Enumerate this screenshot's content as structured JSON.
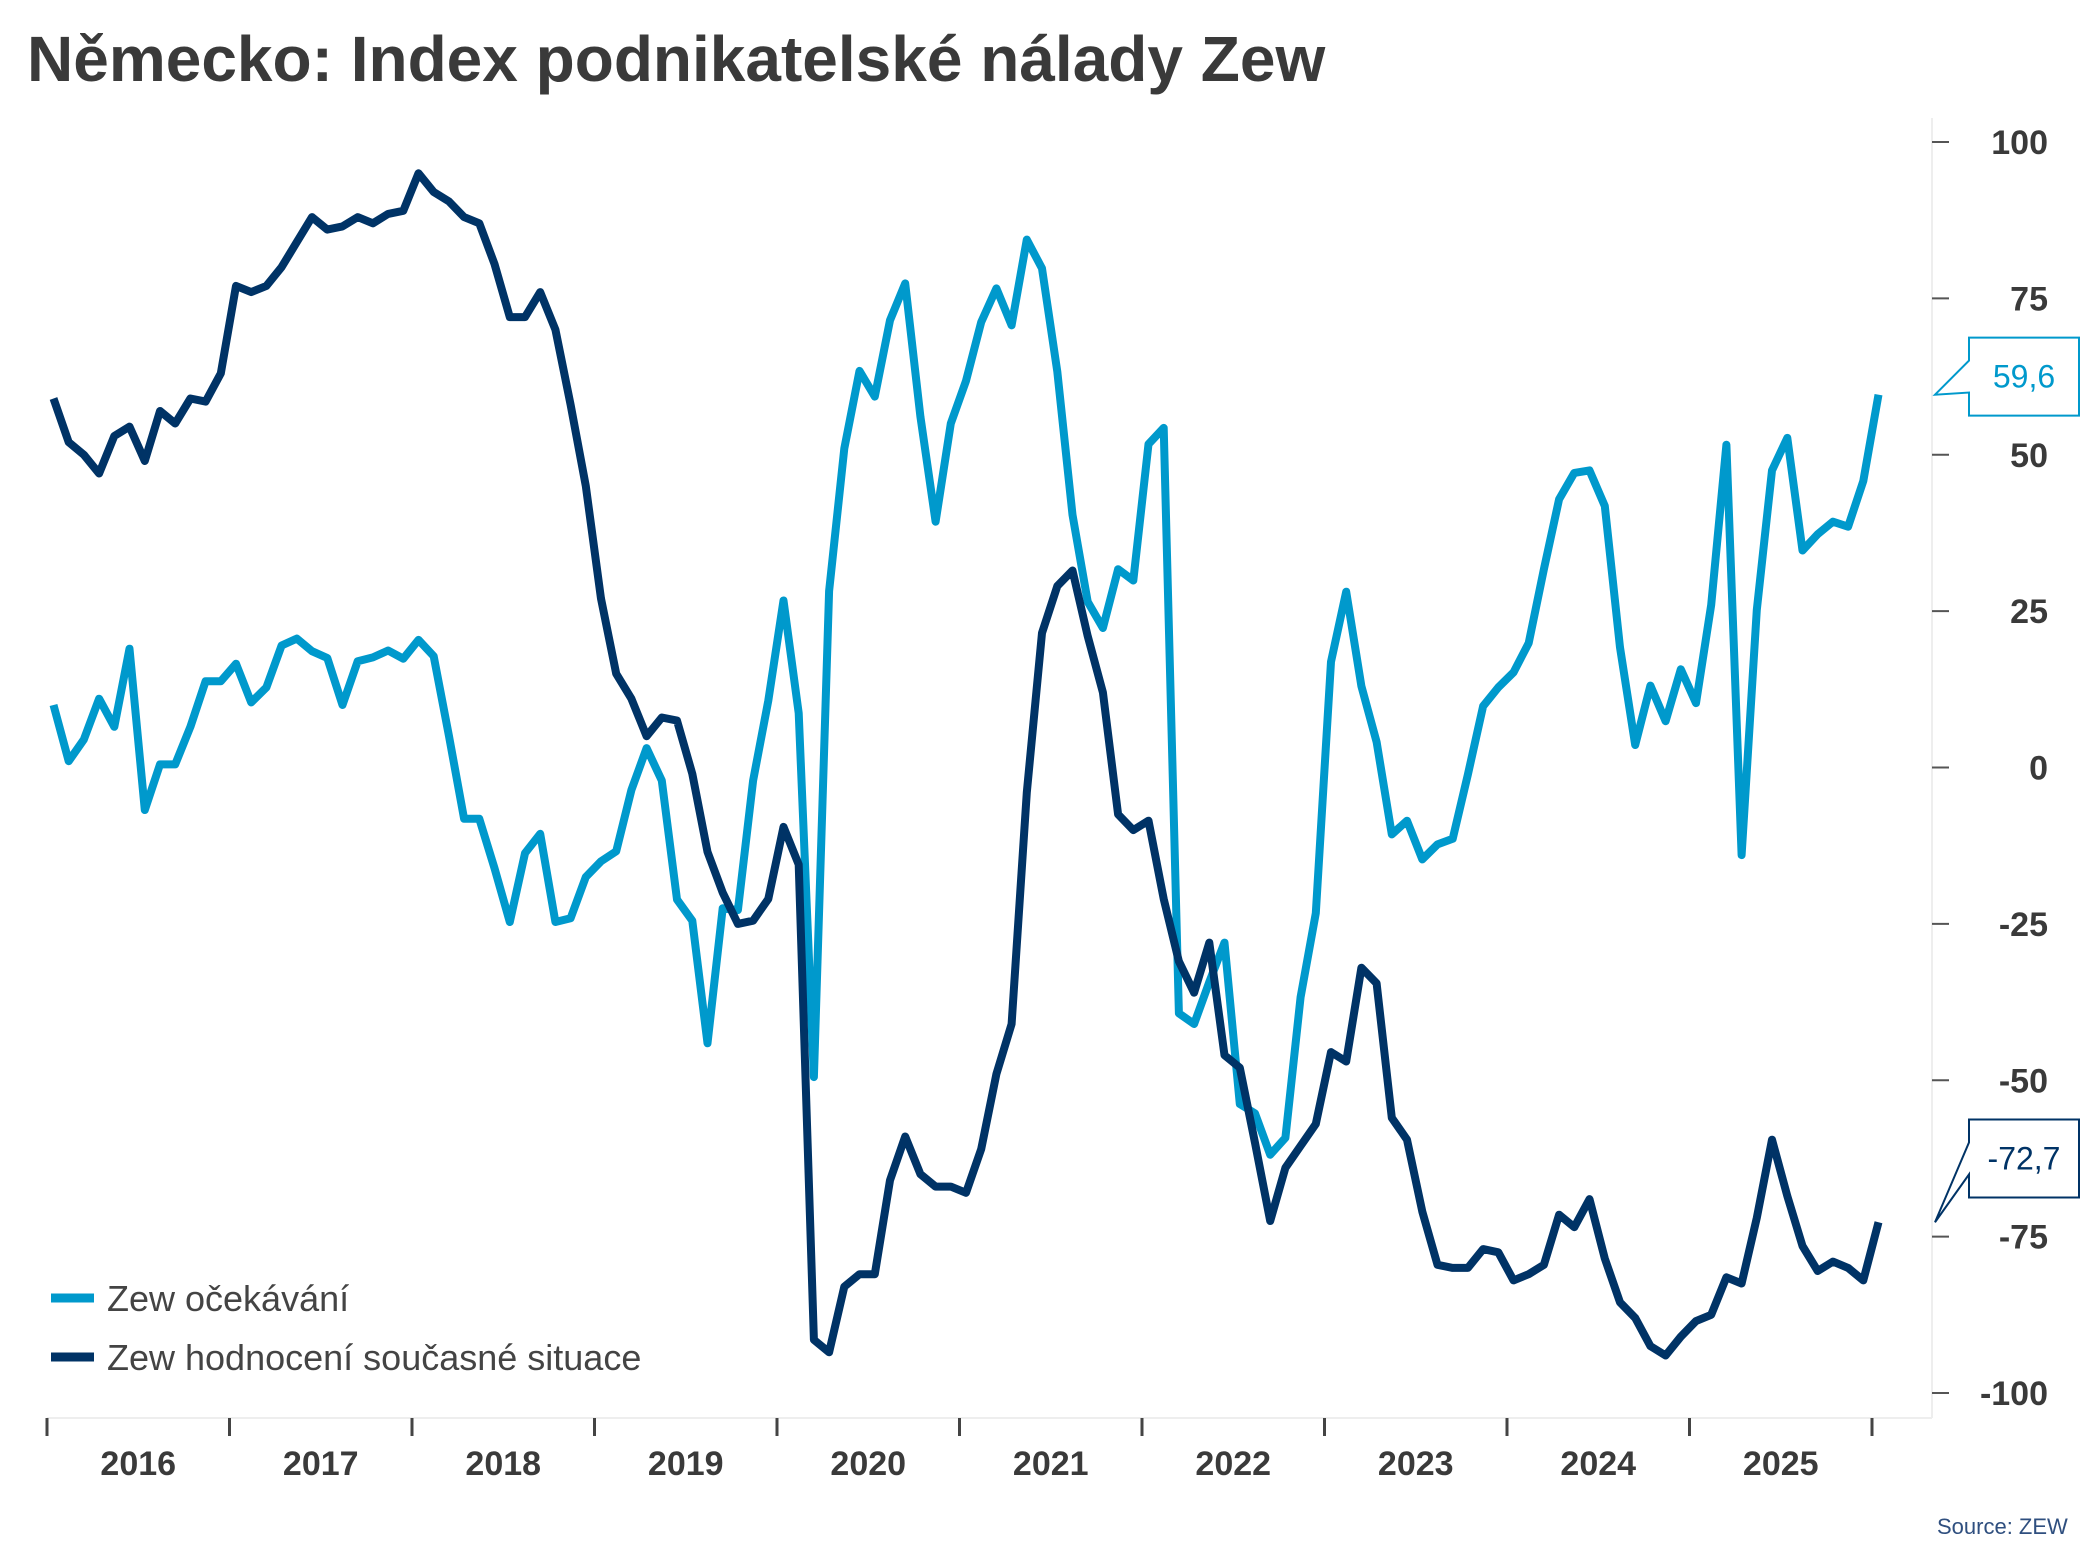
{
  "title": "Německo: Index podnikatelské nálady Zew",
  "source": "Source: ZEW",
  "colors": {
    "expectations": "#0099cc",
    "current": "#003366"
  },
  "chart_data": {
    "type": "line",
    "title": "Německo: Index podnikatelské nálady Zew",
    "x_start": "2016-01",
    "frequency": "monthly",
    "x_tick_labels": [
      "2016",
      "2017",
      "2018",
      "2019",
      "2020",
      "2021",
      "2022",
      "2023",
      "2024",
      "2025"
    ],
    "y_tick_labels": [
      "100",
      "75",
      "50",
      "25",
      "0",
      "-25",
      "-50",
      "-75",
      "-100"
    ],
    "y_ticks": [
      100,
      75,
      50,
      25,
      0,
      -25,
      -50,
      -75,
      -100
    ],
    "ylim": [
      -100,
      100
    ],
    "y_axis_side": "right",
    "grid": false,
    "legend_position": "bottom-left",
    "series": [
      {
        "name": "Zew očekávání",
        "color": "#0099cc",
        "last_label": "59,6",
        "values": [
          10,
          1,
          4.5,
          11,
          6.5,
          19,
          -6.8,
          0.5,
          0.5,
          6.5,
          13.8,
          13.8,
          16.6,
          10.4,
          12.8,
          19.5,
          20.6,
          18.6,
          17.5,
          10,
          17,
          17.6,
          18.7,
          17.4,
          20.4,
          17.8,
          5.1,
          -8.2,
          -8.2,
          -16.1,
          -24.7,
          -13.7,
          -10.6,
          -24.7,
          -24.1,
          -17.5,
          -15,
          -13.4,
          -3.6,
          3.1,
          -2.1,
          -21.1,
          -24.5,
          -44.1,
          -22.5,
          -22.8,
          -2.1,
          10.7,
          26.7,
          8.7,
          -49.5,
          28.2,
          51,
          63.4,
          59.3,
          71.5,
          77.4,
          56.1,
          39.3,
          55,
          61.8,
          71.2,
          76.6,
          70.7,
          84.4,
          79.8,
          63.3,
          40.4,
          26.5,
          22.3,
          31.7,
          29.9,
          51.7,
          54.3,
          -39.3,
          -41,
          -34.3,
          -28,
          -53.8,
          -55.3,
          -61.9,
          -59.2,
          -36.7,
          -23.3,
          16.9,
          28.1,
          13,
          4.1,
          -10.7,
          -8.5,
          -14.7,
          -12.3,
          -11.4,
          -1.1,
          9.8,
          12.8,
          15.2,
          19.9,
          31.7,
          42.9,
          47.1,
          47.5,
          41.8,
          19.2,
          3.6,
          13.1,
          7.4,
          15.7,
          10.3,
          26,
          51.6,
          -14,
          25.2,
          47.5,
          52.7,
          34.7,
          37.3,
          39.3,
          38.5,
          45.8,
          59.6
        ]
      },
      {
        "name": "Zew hodnocení současné situace",
        "color": "#003366",
        "last_label": "-72,7",
        "values": [
          59,
          52,
          50,
          47,
          53,
          54.5,
          49,
          57,
          55,
          59,
          58.5,
          63,
          77,
          76,
          77,
          80,
          84,
          88,
          86,
          86.5,
          88,
          87,
          88.5,
          89,
          95,
          92,
          90.5,
          88,
          87,
          80.5,
          72,
          72,
          76,
          70,
          58,
          45,
          27,
          15,
          11,
          5,
          8,
          7.5,
          -1,
          -13.5,
          -20,
          -25,
          -24.5,
          -21,
          -9.5,
          -15.5,
          -91.5,
          -93.5,
          -83,
          -81,
          -81,
          -66,
          -59,
          -65,
          -67,
          -67,
          -68,
          -61,
          -49,
          -41,
          -4,
          21.5,
          29,
          31.5,
          21,
          12,
          -7.5,
          -10,
          -8.5,
          -21,
          -31,
          -36,
          -28,
          -46,
          -48,
          -60,
          -72.5,
          -64,
          -60.5,
          -57,
          -45.5,
          -47,
          -32,
          -34.5,
          -56,
          -59.5,
          -71,
          -79.5,
          -80,
          -80,
          -77,
          -77.5,
          -82,
          -81,
          -79.5,
          -71.5,
          -73.5,
          -69,
          -78.5,
          -85.5,
          -88,
          -92.5,
          -94,
          -91,
          -88.5,
          -87.5,
          -81.5,
          -82.5,
          -72,
          -59.5,
          -68.5,
          -76.5,
          -80.5,
          -79,
          -80,
          -82,
          -72.7
        ]
      }
    ]
  }
}
